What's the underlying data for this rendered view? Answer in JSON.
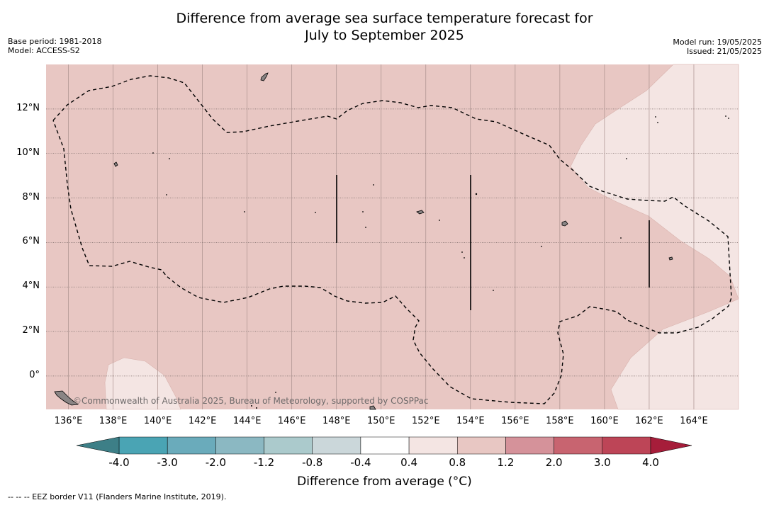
{
  "header": {
    "title_line1": "Difference from average sea surface temperature forecast for",
    "title_line2": "July to September 2025",
    "base_period": "Base period: 1981-2018",
    "model": "Model: ACCESS-S2",
    "model_run": "Model run: 19/05/2025",
    "issued": "Issued: 21/05/2025"
  },
  "map": {
    "lon_range": [
      135,
      166
    ],
    "lat_range": [
      -1.5,
      14
    ],
    "background_color": "#e8c7c3",
    "light_region_color": "#f4e5e3",
    "lat_ticks": [
      {
        "value": 12,
        "label": "12°N"
      },
      {
        "value": 10,
        "label": "10°N"
      },
      {
        "value": 8,
        "label": "8°N"
      },
      {
        "value": 6,
        "label": "6°N"
      },
      {
        "value": 4,
        "label": "4°N"
      },
      {
        "value": 2,
        "label": "2°N"
      },
      {
        "value": 0,
        "label": "0°"
      }
    ],
    "lon_ticks": [
      {
        "value": 136,
        "label": "136°E"
      },
      {
        "value": 138,
        "label": "138°E"
      },
      {
        "value": 140,
        "label": "140°E"
      },
      {
        "value": 142,
        "label": "142°E"
      },
      {
        "value": 144,
        "label": "144°E"
      },
      {
        "value": 146,
        "label": "146°E"
      },
      {
        "value": 148,
        "label": "148°E"
      },
      {
        "value": 150,
        "label": "150°E"
      },
      {
        "value": 152,
        "label": "152°E"
      },
      {
        "value": 154,
        "label": "154°E"
      },
      {
        "value": 156,
        "label": "156°E"
      },
      {
        "value": 158,
        "label": "158°E"
      },
      {
        "value": 160,
        "label": "160°E"
      },
      {
        "value": 162,
        "label": "162°E"
      },
      {
        "value": 164,
        "label": "164°E"
      }
    ],
    "copyright": "©Commonwealth of Australia 2025, Bureau of Meteorology, supported by COSPPac"
  },
  "colorbar": {
    "title": "Difference from average (°C)",
    "ticks": [
      "-4.0",
      "-3.0",
      "-2.0",
      "-1.2",
      "-0.8",
      "-0.4",
      "0.4",
      "0.8",
      "1.2",
      "2.0",
      "3.0",
      "4.0"
    ],
    "under_color": "#3d7f87",
    "over_color": "#a61d3a",
    "colors": [
      "#4aa4b4",
      "#6aabbb",
      "#8bb8c2",
      "#abcacc",
      "#cbd7da",
      "#ffffff",
      "#f4e5e3",
      "#e8c7c3",
      "#d5929a",
      "#c86470",
      "#bd4557"
    ]
  },
  "legend": {
    "eez_note": "--  --  -- EEZ border V11 (Flanders Marine Institute, 2019)."
  }
}
